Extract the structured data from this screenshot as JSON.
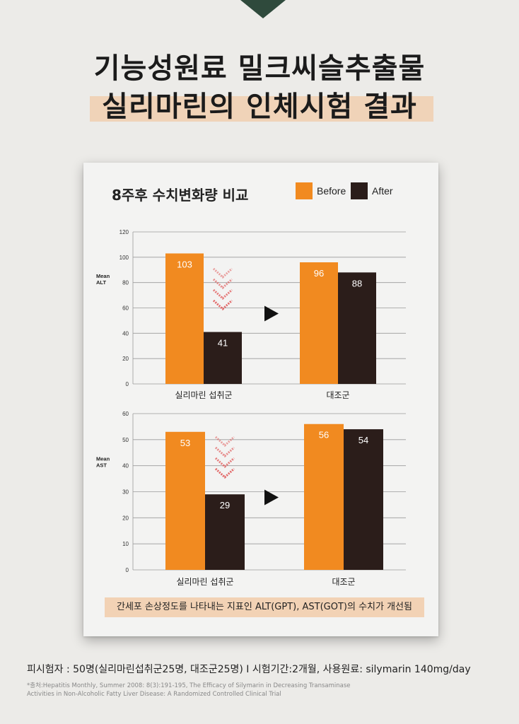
{
  "header": {
    "line1": "기능성원료 밀크씨슬추출물",
    "line2": "실리마린의 인체시험 결과"
  },
  "card": {
    "title": "8주후 수치변화량 비교",
    "legend": [
      {
        "label": "Before",
        "color": "#f18a20"
      },
      {
        "label": "After",
        "color": "#2b1d1a"
      }
    ],
    "caption": "간세포 손상정도를 나타내는 지표인 ALT(GPT), AST(GOT)의 수치가 개선됨"
  },
  "chart_data": [
    {
      "type": "bar",
      "ylabel": "Mean ALT",
      "ylim": [
        0,
        120
      ],
      "yticks": [
        0,
        20,
        40,
        60,
        80,
        100,
        120
      ],
      "categories": [
        "실리마린 섭취군",
        "대조군"
      ],
      "series": [
        {
          "name": "Before",
          "values": [
            103,
            96
          ]
        },
        {
          "name": "After",
          "values": [
            41,
            88
          ]
        }
      ]
    },
    {
      "type": "bar",
      "ylabel": "Mean AST",
      "ylim": [
        0,
        60
      ],
      "yticks": [
        0,
        10,
        20,
        30,
        40,
        50,
        60
      ],
      "categories": [
        "실리마린 섭취군",
        "대조군"
      ],
      "series": [
        {
          "name": "Before",
          "values": [
            53,
            56
          ]
        },
        {
          "name": "After",
          "values": [
            29,
            54
          ]
        }
      ]
    }
  ],
  "footer": {
    "subjects": "피시험자 : 50명(실리마린섭취군25명, 대조군25명)  I   시험기간:2개월, 사용원료: silymarin 140mg/day",
    "source_line1": "*출처:Hepatitis Monthly, Summer 2008: 8(3):191-195, The Efficacy of Silymarin in Decreasing Transaminase",
    "source_line2": "Activities in Non-Alcoholic Fatty Liver Disease: A Randomized Controlled Clinical Trial"
  }
}
